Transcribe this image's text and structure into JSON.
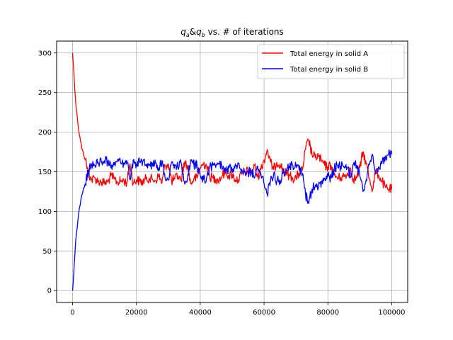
{
  "chart_data": {
    "type": "line",
    "title": "q_a&q_b vs. # of iterations",
    "title_parts": {
      "q": "q",
      "a": "a",
      "amp": "&",
      "b": "b",
      "rest": " vs. # of iterations"
    },
    "xlabel": "",
    "ylabel": "",
    "xlim": [
      -5000,
      105000
    ],
    "ylim": [
      -15,
      315
    ],
    "xticks": [
      0,
      20000,
      40000,
      60000,
      80000,
      100000
    ],
    "yticks": [
      0,
      50,
      100,
      150,
      200,
      250,
      300
    ],
    "grid": true,
    "legend": "top-right",
    "x_step": 1000,
    "series": [
      {
        "name": "Total energy in solid A",
        "color": "#ff0000",
        "values": [
          300,
          236,
          200,
          178,
          165,
          148,
          140,
          142,
          138,
          137,
          136,
          137,
          145,
          141,
          137,
          138,
          139,
          136,
          160,
          135,
          140,
          138,
          137,
          141,
          142,
          140,
          139,
          145,
          136,
          158,
          160,
          138,
          141,
          145,
          139,
          162,
          158,
          135,
          141,
          142,
          155,
          160,
          158,
          144,
          142,
          141,
          140,
          146,
          150,
          145,
          147,
          140,
          140,
          147,
          149,
          151,
          149,
          158,
          143,
          153,
          165,
          178,
          162,
          153,
          162,
          160,
          151,
          148,
          145,
          142,
          142,
          148,
          152,
          179,
          190,
          172,
          168,
          170,
          163,
          158,
          156,
          158,
          146,
          142,
          143,
          144,
          146,
          155,
          141,
          142,
          155,
          175,
          160,
          141,
          128,
          152,
          145,
          138,
          130,
          128,
          128
        ]
      },
      {
        "name": "Total energy in solid B",
        "color": "#0000ff",
        "values": [
          0,
          64,
          100,
          122,
          135,
          152,
          160,
          158,
          162,
          163,
          164,
          163,
          155,
          159,
          163,
          162,
          161,
          164,
          140,
          165,
          160,
          162,
          163,
          159,
          158,
          160,
          161,
          155,
          164,
          142,
          140,
          162,
          159,
          155,
          161,
          138,
          142,
          165,
          159,
          158,
          145,
          140,
          142,
          156,
          158,
          159,
          160,
          154,
          150,
          155,
          153,
          160,
          160,
          153,
          151,
          149,
          151,
          142,
          157,
          147,
          135,
          122,
          138,
          147,
          138,
          140,
          149,
          152,
          155,
          158,
          158,
          152,
          148,
          121,
          110,
          128,
          132,
          130,
          137,
          142,
          144,
          142,
          154,
          158,
          157,
          156,
          154,
          145,
          159,
          158,
          145,
          125,
          140,
          159,
          172,
          148,
          155,
          162,
          170,
          172,
          172
        ]
      }
    ]
  }
}
